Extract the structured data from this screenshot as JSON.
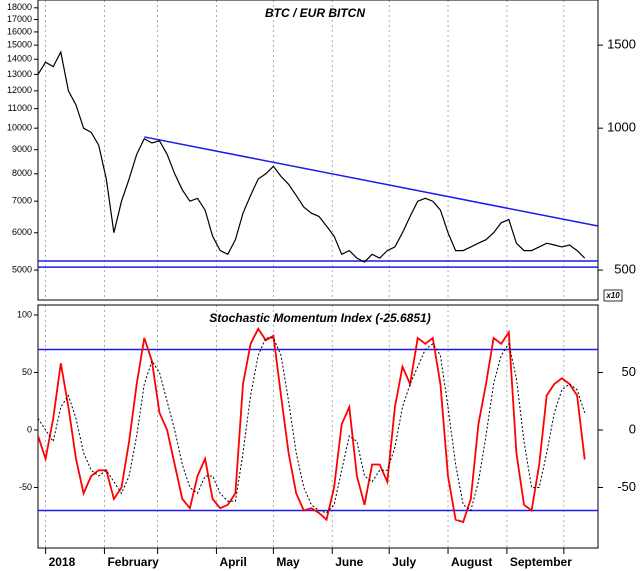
{
  "chart_data": [
    {
      "type": "line",
      "title": "BTC / EUR BITCN",
      "log": true,
      "grid": true,
      "ylim": [
        4320,
        18700
      ],
      "yticks": [
        5000,
        6000,
        7000,
        8000,
        9000,
        10000,
        11000,
        12000,
        13000,
        14000,
        15000,
        16000,
        17000,
        18000
      ],
      "y2lim": [
        432,
        1870
      ],
      "y2ticks": [
        500,
        1000,
        1500
      ],
      "y2_note": "x10",
      "xlim": [
        -4,
        291
      ],
      "x": [
        -4,
        0,
        4,
        8,
        12,
        16,
        20,
        24,
        28,
        32,
        36,
        40,
        44,
        48,
        52,
        56,
        60,
        64,
        68,
        72,
        76,
        80,
        84,
        88,
        92,
        96,
        100,
        104,
        108,
        112,
        116,
        120,
        124,
        128,
        132,
        136,
        140,
        144,
        148,
        152,
        156,
        160,
        164,
        168,
        172,
        176,
        180,
        184,
        188,
        192,
        196,
        200,
        204,
        208,
        212,
        216,
        220,
        224,
        228,
        232,
        236,
        240,
        244,
        248,
        252,
        256,
        260,
        264,
        268,
        272,
        276,
        280,
        284
      ],
      "series": [
        {
          "color": "#000000",
          "values": [
            13000,
            13800,
            13500,
            14500,
            12000,
            11200,
            10000,
            9800,
            9200,
            7800,
            6000,
            7000,
            7800,
            8800,
            9500,
            9300,
            9400,
            8800,
            8000,
            7400,
            7000,
            7100,
            6700,
            5900,
            5500,
            5400,
            5800,
            6600,
            7200,
            7800,
            8000,
            8300,
            7900,
            7600,
            7200,
            6800,
            6600,
            6500,
            6200,
            5900,
            5400,
            5500,
            5300,
            5200,
            5400,
            5300,
            5500,
            5600,
            6000,
            6500,
            7000,
            7100,
            7000,
            6700,
            6000,
            5500,
            5500,
            5600,
            5700,
            5800,
            6000,
            6300,
            6400,
            5700,
            5500,
            5500,
            5600,
            5700,
            5650,
            5600,
            5650,
            5500,
            5300
          ]
        }
      ],
      "trendlines": [
        {
          "color": "#1a1aee",
          "x": [
            52,
            291
          ],
          "values": [
            9580,
            6200
          ]
        }
      ],
      "hlines": [
        {
          "color": "#1a1aee",
          "value": 5225
        },
        {
          "color": "#1a1aee",
          "value": 5074
        }
      ]
    },
    {
      "type": "line",
      "title": "Stochastic Momentum Index (-25.6851)",
      "log": false,
      "grid": true,
      "ylim": [
        -102.6,
        108.7
      ],
      "yticks": [
        100,
        50,
        0,
        -50
      ],
      "y2lim": [
        -102.6,
        108.7
      ],
      "y2ticks": [
        50,
        0,
        -50
      ],
      "xlim": [
        -4,
        291
      ],
      "xticks": [
        {
          "value": 0,
          "label": "2018"
        },
        {
          "value": 31,
          "label": "February"
        },
        {
          "value": 59,
          "label": null
        },
        {
          "value": 90,
          "label": "April"
        },
        {
          "value": 120,
          "label": "May"
        },
        {
          "value": 151,
          "label": "June"
        },
        {
          "value": 181,
          "label": "July"
        },
        {
          "value": 212,
          "label": "August"
        },
        {
          "value": 243,
          "label": "September"
        },
        {
          "value": 273,
          "label": null
        }
      ],
      "x": [
        -4,
        0,
        4,
        8,
        12,
        16,
        20,
        24,
        28,
        32,
        36,
        40,
        44,
        48,
        52,
        56,
        60,
        64,
        68,
        72,
        76,
        80,
        84,
        88,
        92,
        96,
        100,
        104,
        108,
        112,
        116,
        120,
        124,
        128,
        132,
        136,
        140,
        144,
        148,
        152,
        156,
        160,
        164,
        168,
        172,
        176,
        180,
        184,
        188,
        192,
        196,
        200,
        204,
        208,
        212,
        216,
        220,
        224,
        228,
        232,
        236,
        240,
        244,
        248,
        252,
        256,
        260,
        264,
        268,
        272,
        276,
        280,
        284
      ],
      "series": [
        {
          "color": "#ff0000",
          "dash": false,
          "values": [
            -5,
            -25,
            10,
            58,
            20,
            -25,
            -55,
            -40,
            -35,
            -35,
            -60,
            -50,
            -10,
            40,
            80,
            60,
            15,
            0,
            -30,
            -60,
            -68,
            -40,
            -25,
            -60,
            -68,
            -65,
            -55,
            40,
            75,
            88,
            78,
            82,
            30,
            -20,
            -55,
            -70,
            -68,
            -72,
            -78,
            -50,
            5,
            20,
            -40,
            -65,
            -30,
            -30,
            -45,
            20,
            55,
            40,
            80,
            75,
            80,
            40,
            -40,
            -78,
            -80,
            -60,
            5,
            40,
            80,
            75,
            85,
            -20,
            -65,
            -70,
            -30,
            30,
            40,
            45,
            40,
            30,
            -25.6851
          ]
        },
        {
          "color": "#000000",
          "dash": true,
          "values": [
            10,
            0,
            -10,
            20,
            30,
            10,
            -20,
            -35,
            -40,
            -35,
            -45,
            -55,
            -40,
            -5,
            40,
            60,
            50,
            25,
            0,
            -30,
            -50,
            -55,
            -40,
            -40,
            -55,
            -62,
            -62,
            -20,
            30,
            65,
            80,
            80,
            65,
            25,
            -20,
            -50,
            -65,
            -70,
            -72,
            -65,
            -35,
            -5,
            -10,
            -40,
            -45,
            -35,
            -35,
            -15,
            20,
            40,
            55,
            70,
            75,
            65,
            20,
            -30,
            -65,
            -70,
            -45,
            -5,
            40,
            65,
            75,
            45,
            -10,
            -50,
            -50,
            -20,
            15,
            35,
            40,
            35,
            15
          ]
        }
      ],
      "hlines": [
        {
          "color": "#1a1aee",
          "value": 70
        },
        {
          "color": "#1a1aee",
          "value": -70
        }
      ]
    }
  ]
}
